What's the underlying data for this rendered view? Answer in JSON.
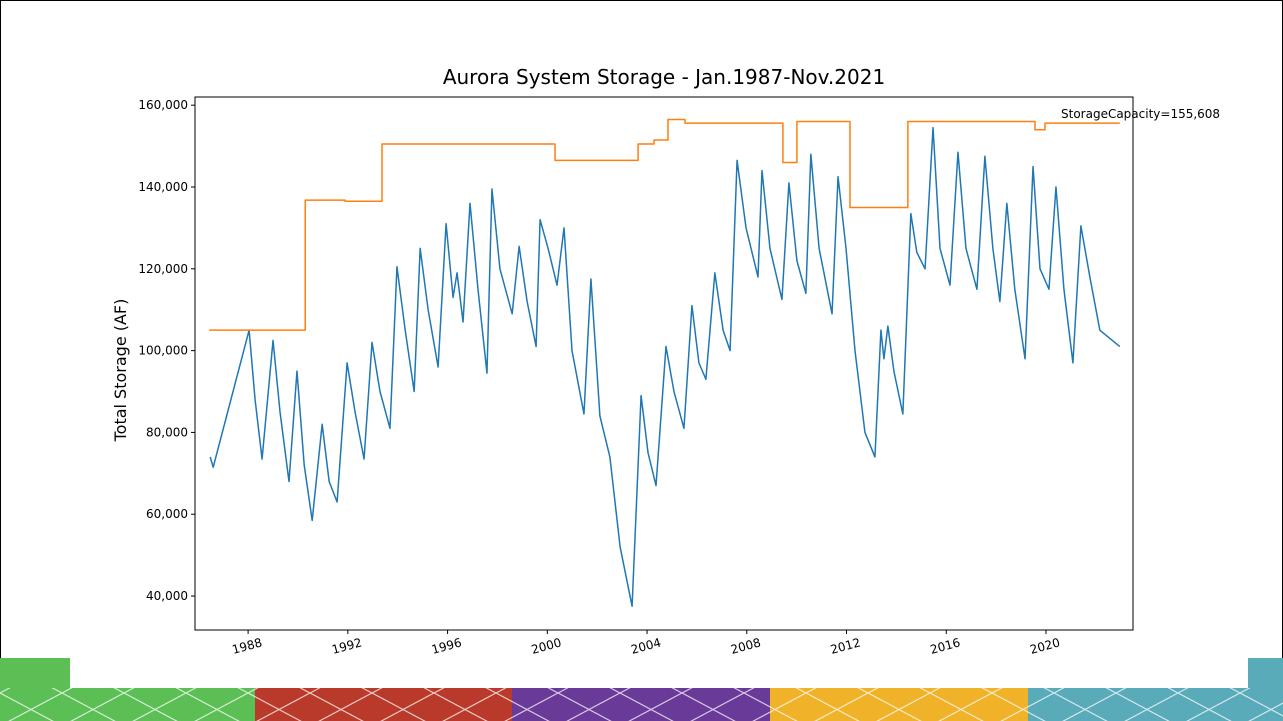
{
  "chart_data": {
    "type": "line",
    "title": "Aurora System Storage - Jan.1987-Nov.2021",
    "ylabel": "Total Storage (AF)",
    "annotation": "StorageCapacity=155,608",
    "xlim": [
      1985.87,
      2023.49
    ],
    "xticks": [
      1988,
      1992,
      1996,
      2000,
      2004,
      2008,
      2012,
      2016,
      2020
    ],
    "ylim": [
      31700,
      162000
    ],
    "yticks": [
      {
        "value": 40000,
        "label": "40,000"
      },
      {
        "value": 60000,
        "label": "60,000"
      },
      {
        "value": 80000,
        "label": "80,000"
      },
      {
        "value": 100000,
        "label": "100,000"
      },
      {
        "value": 120000,
        "label": "120,000"
      },
      {
        "value": 140000,
        "label": "140,000"
      },
      {
        "value": 160000,
        "label": "160,000"
      }
    ],
    "grid": false,
    "series": [
      {
        "color": "#1f77b4",
        "x": [
          1986.48,
          1986.6,
          1988.04,
          1988.28,
          1988.56,
          1989.0,
          1989.28,
          1989.64,
          1989.96,
          1990.25,
          1990.57,
          1990.97,
          1991.25,
          1991.57,
          1991.97,
          1992.29,
          1992.65,
          1992.97,
          1993.29,
          1993.69,
          1993.97,
          1994.3,
          1994.66,
          1994.9,
          1995.22,
          1995.62,
          1995.94,
          1996.22,
          1996.38,
          1996.62,
          1996.9,
          1997.22,
          1997.58,
          1997.78,
          1998.1,
          1998.59,
          1998.87,
          1999.19,
          1999.55,
          1999.71,
          2000.03,
          2000.39,
          2000.67,
          2000.99,
          2001.47,
          2001.75,
          2002.11,
          2002.51,
          2002.92,
          2003.4,
          2003.76,
          2004.04,
          2004.36,
          2004.76,
          2005.08,
          2005.48,
          2005.8,
          2006.08,
          2006.36,
          2006.72,
          2007.05,
          2007.33,
          2007.61,
          2007.97,
          2008.45,
          2008.61,
          2008.93,
          2009.41,
          2009.69,
          2010.01,
          2010.37,
          2010.57,
          2010.9,
          2011.42,
          2011.66,
          2011.98,
          2012.34,
          2012.74,
          2013.14,
          2013.38,
          2013.5,
          2013.66,
          2013.9,
          2014.26,
          2014.58,
          2014.82,
          2015.15,
          2015.47,
          2015.75,
          2016.15,
          2016.47,
          2016.79,
          2017.23,
          2017.55,
          2017.87,
          2018.15,
          2018.43,
          2018.75,
          2019.16,
          2019.48,
          2019.76,
          2020.12,
          2020.4,
          2020.72,
          2021.08,
          2021.4,
          2021.76,
          2022.16,
          2022.96
        ],
        "values": [
          74000,
          71500,
          105000,
          88000,
          73500,
          102500,
          85000,
          68000,
          95000,
          72000,
          58500,
          82000,
          68000,
          63000,
          97000,
          85000,
          73500,
          102000,
          90000,
          81000,
          120500,
          105000,
          90000,
          125000,
          110000,
          96000,
          131000,
          113000,
          119000,
          107000,
          136000,
          115000,
          94500,
          139500,
          120000,
          109000,
          125500,
          112000,
          101000,
          132000,
          125000,
          116000,
          130000,
          100000,
          84500,
          117500,
          84000,
          74000,
          52000,
          37500,
          89000,
          75000,
          67000,
          101000,
          90000,
          81000,
          111000,
          97000,
          93000,
          119000,
          105000,
          100000,
          146500,
          130000,
          118000,
          144000,
          125000,
          112500,
          141000,
          122000,
          114000,
          148000,
          125000,
          109000,
          142500,
          125000,
          100000,
          80000,
          74000,
          105000,
          98000,
          106000,
          95000,
          84500,
          133500,
          124000,
          120000,
          154500,
          125000,
          116000,
          148500,
          125000,
          115000,
          147500,
          125000,
          112000,
          136000,
          115000,
          98000,
          145000,
          120000,
          115000,
          140000,
          115000,
          97000,
          130500,
          118000,
          105000,
          101000
        ]
      },
      {
        "color": "#ff7f0e",
        "x": [
          1986.44,
          1990.29,
          1990.29,
          1991.89,
          1991.89,
          1993.37,
          1993.37,
          2000.31,
          2000.31,
          2003.64,
          2003.64,
          2004.28,
          2004.28,
          2004.84,
          2004.84,
          2005.52,
          2005.52,
          2009.45,
          2009.45,
          2010.01,
          2010.01,
          2012.14,
          2012.14,
          2014.46,
          2014.46,
          2019.56,
          2019.56,
          2019.96,
          2019.96,
          2022.96
        ],
        "values": [
          105000,
          105000,
          136800,
          136800,
          136500,
          136500,
          150500,
          150500,
          146500,
          146500,
          150500,
          150500,
          151500,
          151500,
          156500,
          156500,
          155600,
          155600,
          146000,
          146000,
          156000,
          156000,
          135000,
          135000,
          156000,
          156000,
          154000,
          154000,
          155608,
          155608
        ]
      }
    ]
  }
}
